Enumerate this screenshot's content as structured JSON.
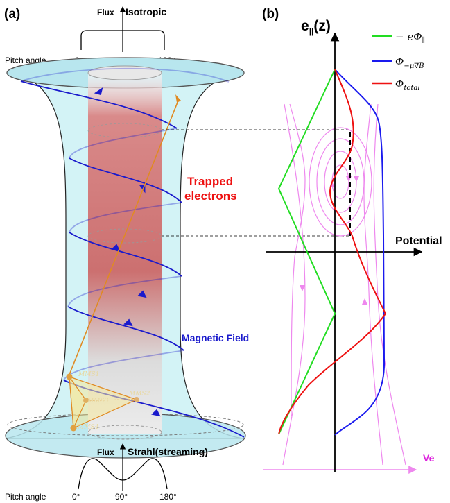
{
  "panel_a": {
    "label": "(a)",
    "top_flux": "Flux",
    "top_dist": "Isotropic",
    "top_pitch_label": "Pitch angle",
    "bottom_flux": "Flux",
    "bottom_dist": "Strahl(streaming)",
    "bottom_pitch_label": "Pitch angle",
    "ticks": [
      "0°",
      "90°",
      "180°"
    ],
    "trapped_line1": "Trapped",
    "trapped_line2": "electrons",
    "magnetic_field": "Magnetic Field",
    "spacecraft": [
      "MMS1",
      "MMS2",
      "MMS3",
      "MMS4"
    ]
  },
  "panel_b": {
    "label": "(b)",
    "y_axis": "e",
    "y_axis_sub": "||",
    "y_axis_arg": "(z)",
    "x_axis": "Potential",
    "ve_axis": "Ve",
    "legend": [
      {
        "sym": "− eΦ",
        "sub": "∥",
        "color": "#22dd22"
      },
      {
        "sym": "Φ",
        "sub": "−μ∇B",
        "color": "#1a1aee"
      },
      {
        "sym": "Φ",
        "sub": "total",
        "color": "#ee1111"
      }
    ]
  },
  "colors": {
    "trapped_text": "#ee1111",
    "field_text": "#1a1acc",
    "flux_tube": "#c8f0f4",
    "field_line": "#1a1acc",
    "trajectory": "#e08a22",
    "phase_space": "#ee88ee"
  }
}
